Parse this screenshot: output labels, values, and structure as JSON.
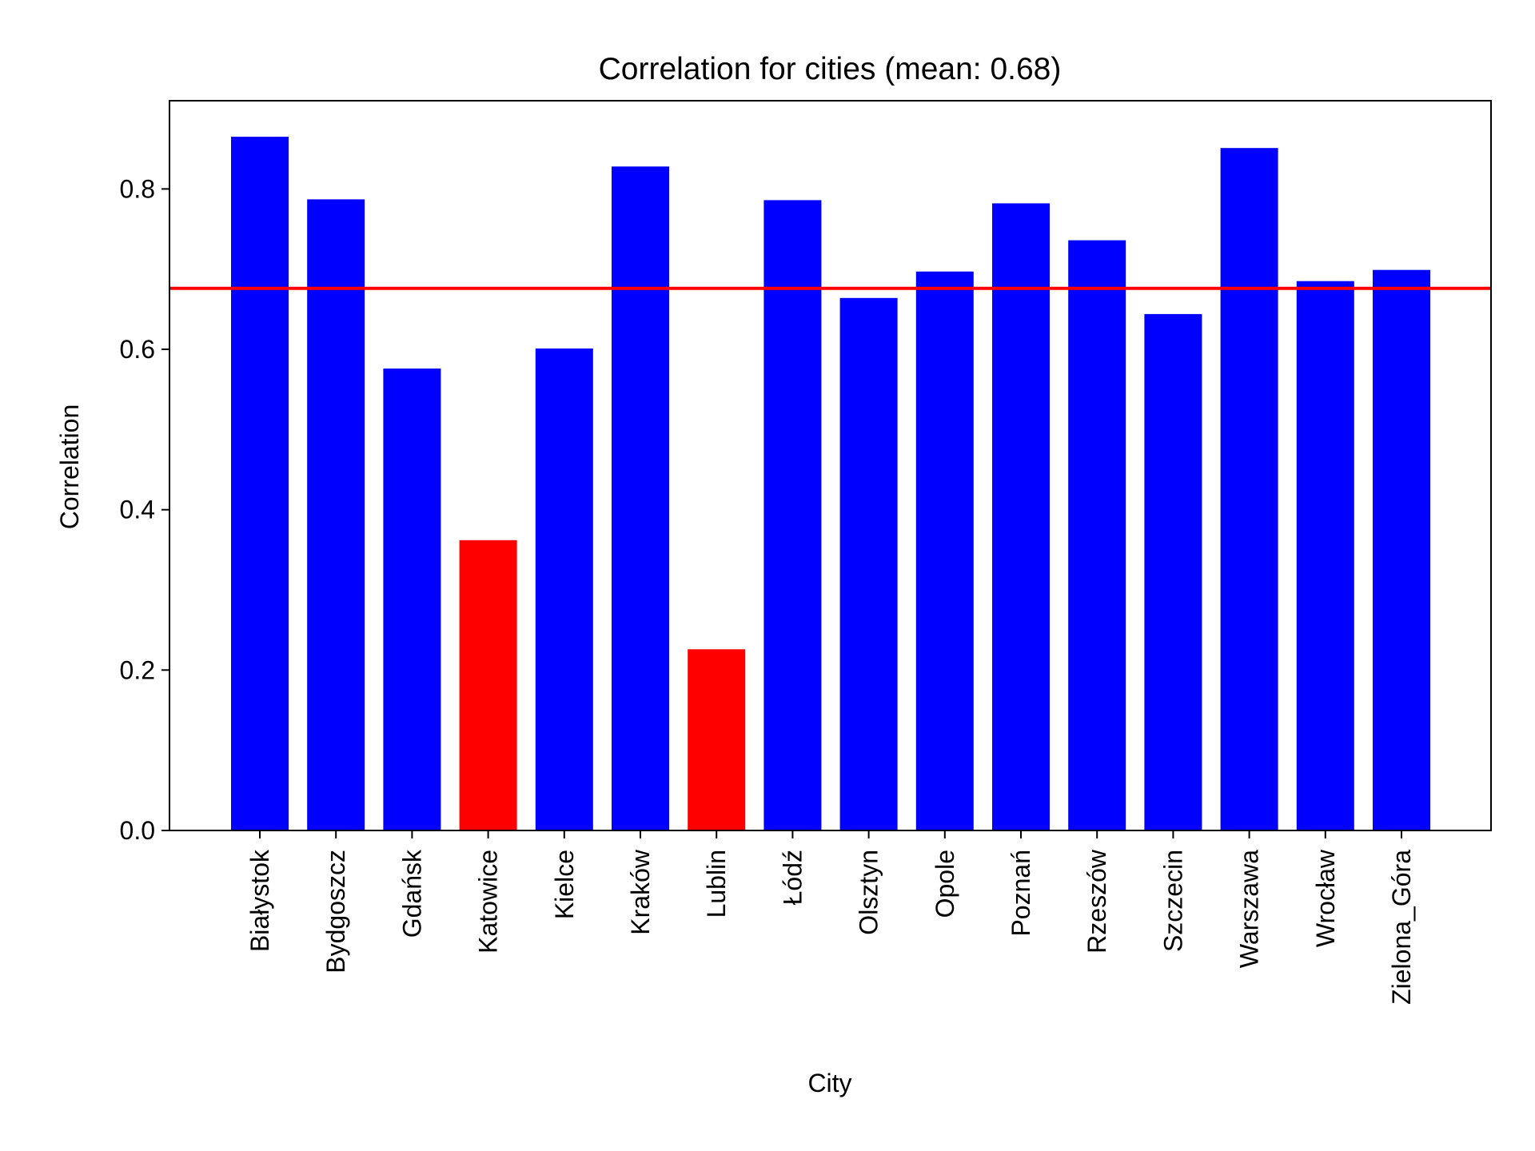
{
  "chart_data": {
    "type": "bar",
    "title": "Correlation for cities (mean: 0.68)",
    "xlabel": "City",
    "ylabel": "Correlation",
    "categories": [
      "Białystok",
      "Bydgoszcz",
      "Gdańsk",
      "Katowice",
      "Kielce",
      "Kraków",
      "Lublin",
      "Łódź",
      "Olsztyn",
      "Opole",
      "Poznań",
      "Rzeszów",
      "Szczecin",
      "Warszawa",
      "Wrocław",
      "Zielona_Góra"
    ],
    "values": [
      0.865,
      0.787,
      0.576,
      0.362,
      0.601,
      0.828,
      0.226,
      0.786,
      0.664,
      0.697,
      0.782,
      0.736,
      0.644,
      0.851,
      0.685,
      0.699
    ],
    "bar_colors": [
      "#0000ff",
      "#0000ff",
      "#0000ff",
      "#ff0000",
      "#0000ff",
      "#0000ff",
      "#ff0000",
      "#0000ff",
      "#0000ff",
      "#0000ff",
      "#0000ff",
      "#0000ff",
      "#0000ff",
      "#0000ff",
      "#0000ff",
      "#0000ff"
    ],
    "mean_line": {
      "value": 0.676,
      "color": "#ff0000"
    },
    "ylim": [
      0,
      0.91
    ],
    "yticks": [
      0.0,
      0.2,
      0.4,
      0.6,
      0.8
    ],
    "ytick_labels": [
      "0.0",
      "0.2",
      "0.4",
      "0.6",
      "0.8"
    ],
    "grid": false,
    "legend": "none"
  }
}
